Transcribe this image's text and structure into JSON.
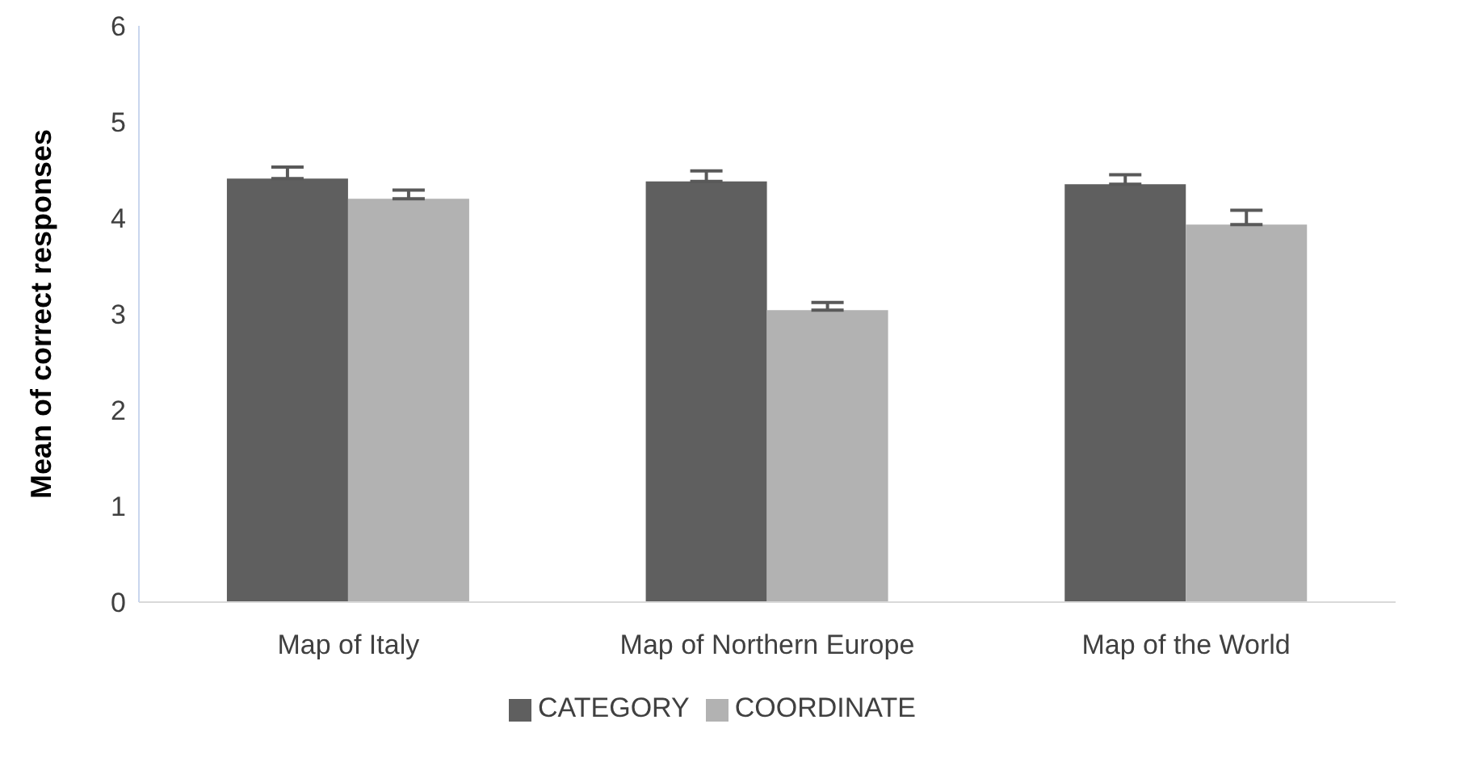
{
  "chart_data": {
    "type": "bar",
    "ylabel": "Mean  of correct responses",
    "categories": [
      "Map of Italy",
      "Map of  Northern Europe",
      "Map of the World"
    ],
    "series": [
      {
        "name": "CATEGORY",
        "color": "#5f5f5f",
        "values": [
          4.41,
          4.38,
          4.35
        ],
        "errors": [
          [
            4.41,
            4.53
          ],
          [
            4.38,
            4.49
          ],
          [
            4.35,
            4.45
          ]
        ]
      },
      {
        "name": "COORDINATE",
        "color": "#b2b2b2",
        "values": [
          4.2,
          3.04,
          3.93
        ],
        "errors": [
          [
            4.2,
            4.29
          ],
          [
            3.04,
            3.12
          ],
          [
            3.93,
            4.08
          ]
        ]
      }
    ],
    "ylim": [
      0,
      6
    ],
    "yticks": [
      0,
      1,
      2,
      3,
      4,
      5,
      6
    ],
    "grid": false,
    "legend": "bottom"
  }
}
